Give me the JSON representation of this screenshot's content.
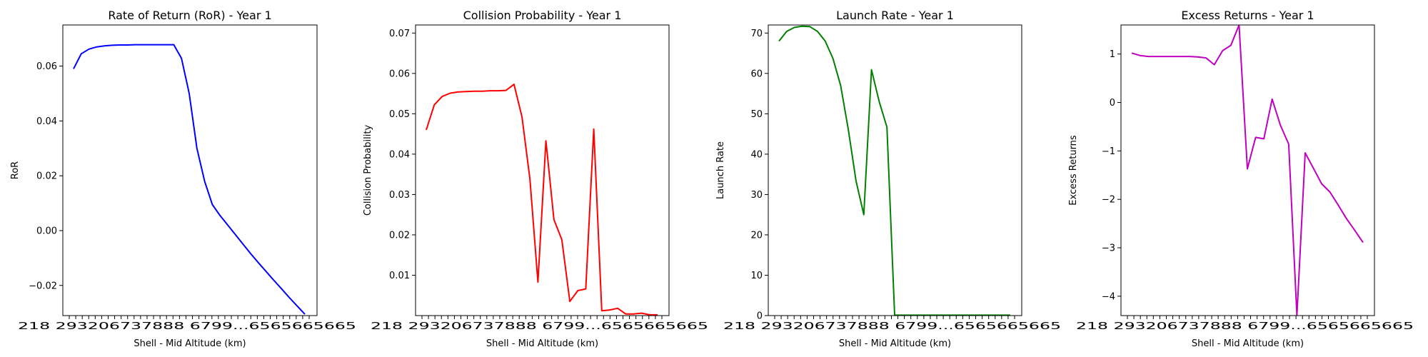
{
  "chart_data": [
    {
      "type": "line",
      "title": "Rate of Return (RoR) - Year 1",
      "xlabel": "Shell - Mid Altitude (km)",
      "ylabel": "RoR",
      "color": "#0000ff",
      "ylim": [
        -0.031,
        0.075
      ],
      "yticks": [
        -0.02,
        0.0,
        0.02,
        0.04,
        0.06
      ],
      "ytick_labels": [
        "−0.02",
        "0.00",
        "0.02",
        "0.04",
        "0.06"
      ],
      "grid": false,
      "values": [
        0.059,
        0.0645,
        0.0662,
        0.067,
        0.0674,
        0.0676,
        0.0677,
        0.0677,
        0.0678,
        0.0678,
        0.0678,
        0.0678,
        0.0678,
        0.0678,
        0.0628,
        0.05,
        0.03,
        0.018,
        0.0095,
        0.0055,
        0.002,
        -0.0015,
        -0.005,
        -0.0085,
        -0.0118,
        -0.015,
        -0.0182,
        -0.0213,
        -0.0245,
        -0.0275,
        -0.0305
      ]
    },
    {
      "type": "line",
      "title": "Collision Probability - Year 1",
      "xlabel": "Shell - Mid Altitude (km)",
      "ylabel": "Collision Probability",
      "color": "#ff0000",
      "ylim": [
        0.0,
        0.072
      ],
      "yticks": [
        0.01,
        0.02,
        0.03,
        0.04,
        0.05,
        0.06,
        0.07
      ],
      "ytick_labels": [
        "0.01",
        "0.02",
        "0.03",
        "0.04",
        "0.05",
        "0.06",
        "0.07"
      ],
      "grid": false,
      "values": [
        0.046,
        0.0522,
        0.0543,
        0.0551,
        0.0554,
        0.0555,
        0.0556,
        0.0556,
        0.0557,
        0.0557,
        0.0558,
        0.0573,
        0.0492,
        0.0338,
        0.0083,
        0.0433,
        0.0238,
        0.0188,
        0.0035,
        0.0062,
        0.0066,
        0.0462,
        0.0012,
        0.0014,
        0.0018,
        0.0004,
        0.0004,
        0.0006,
        0.0002,
        0.0002
      ]
    },
    {
      "type": "line",
      "title": "Launch Rate - Year 1",
      "xlabel": "Shell - Mid Altitude (km)",
      "ylabel": "Launch Rate",
      "color": "#008000",
      "ylim": [
        0,
        72
      ],
      "yticks": [
        0,
        10,
        20,
        30,
        40,
        50,
        60,
        70
      ],
      "ytick_labels": [
        "0",
        "10",
        "20",
        "30",
        "40",
        "50",
        "60",
        "70"
      ],
      "grid": false,
      "values": [
        68.0,
        70.4,
        71.4,
        71.7,
        71.6,
        70.4,
        68.0,
        63.7,
        57.0,
        46.0,
        33.3,
        25.0,
        60.9,
        53.0,
        46.7,
        0.1,
        0.1,
        0.1,
        0.1,
        0.1,
        0.1,
        0.1,
        0.1,
        0.1,
        0.1,
        0.1,
        0.1,
        0.1,
        0.1,
        0.1,
        0.1
      ]
    },
    {
      "type": "line",
      "title": "Excess Returns - Year 1",
      "xlabel": "Shell - Mid Altitude (km)",
      "ylabel": "Excess Returns",
      "color": "#bf00bf",
      "ylim": [
        -4.4,
        1.6
      ],
      "yticks": [
        -4,
        -3,
        -2,
        -1,
        0,
        1
      ],
      "ytick_labels": [
        "−4",
        "−3",
        "−2",
        "−1",
        "0",
        "1"
      ],
      "grid": false,
      "values": [
        1.02,
        0.97,
        0.95,
        0.95,
        0.95,
        0.95,
        0.95,
        0.95,
        0.94,
        0.92,
        0.78,
        1.07,
        1.18,
        1.6,
        -1.37,
        -0.72,
        -0.75,
        0.07,
        -0.47,
        -0.86,
        -4.4,
        -1.04,
        -1.36,
        -1.68,
        -1.85,
        -2.12,
        -2.4,
        -2.64,
        -2.89
      ]
    }
  ],
  "xtick_text": "218 293206737888 6799...6565665665"
}
